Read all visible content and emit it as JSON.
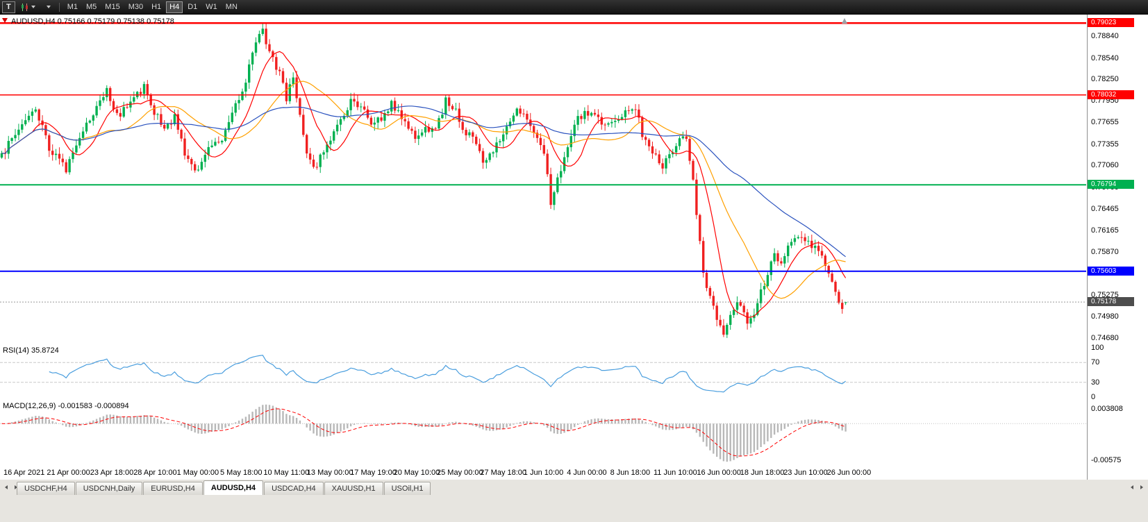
{
  "toolbar": {
    "t_label": "T",
    "timeframes": [
      "M1",
      "M5",
      "M15",
      "M30",
      "H1",
      "H4",
      "D1",
      "W1",
      "MN"
    ],
    "active_timeframe": "H4"
  },
  "chart": {
    "title": "AUDUSD,H4 0.75166 0.75179 0.75138 0.75178",
    "symbol": "AUDUSD",
    "timeframe": "H4",
    "open": "0.75166",
    "high": "0.75179",
    "low": "0.75138",
    "close": "0.75178",
    "y_axis_labels": [
      "0.78840",
      "0.78540",
      "0.78250",
      "0.77950",
      "0.77655",
      "0.77355",
      "0.77060",
      "0.76760",
      "0.76465",
      "0.76165",
      "0.75870",
      "0.75570",
      "0.75275",
      "0.74980",
      "0.74680"
    ],
    "hlines": [
      {
        "label": "0.79023",
        "value": 0.79023,
        "color": "#ff0000",
        "width": 2.5
      },
      {
        "label": "0.78032",
        "value": 0.78032,
        "color": "#ff0000",
        "width": 1.5
      },
      {
        "label": "0.76794",
        "value": 0.76794,
        "color": "#00b050",
        "width": 2
      },
      {
        "label": "0.75603",
        "value": 0.75603,
        "color": "#0000ff",
        "width": 2
      }
    ],
    "current_price": {
      "label": "0.75178",
      "value": 0.75178
    },
    "colors": {
      "up_candle": "#00b050",
      "down_candle": "#f02020",
      "rsi_line": "#4a9ede",
      "macd_histogram": "#b8b8b8",
      "macd_signal": "#ff0000",
      "current_badge": "#4d4d4d",
      "current_price_line": "#999999"
    }
  },
  "rsi": {
    "label": "RSI(14) 35.8724",
    "period": 14,
    "value": "35.8724",
    "levels": [
      "100",
      "70",
      "30",
      "0"
    ]
  },
  "macd": {
    "label": "MACD(12,26,9) -0.001583 -0.000894",
    "value": "-0.001583",
    "signal": "-0.000894",
    "axis_top": "0.003808",
    "axis_bottom": "-0.00575"
  },
  "time_axis": {
    "labels": [
      "16 Apr 2021",
      "21 Apr 00:00",
      "23 Apr 18:00",
      "28 Apr 10:00",
      "1 May 00:00",
      "5 May 18:00",
      "10 May 11:00",
      "13 May 00:00",
      "17 May 19:00",
      "20 May 10:00",
      "25 May 00:00",
      "27 May 18:00",
      "1 Jun 10:00",
      "4 Jun 00:00",
      "8 Jun 18:00",
      "11 Jun 10:00",
      "16 Jun 00:00",
      "18 Jun 18:00",
      "23 Jun 10:00",
      "26 Jun 00:00"
    ]
  },
  "tabs": {
    "items": [
      "USDCHF,H4",
      "USDCNH,Daily",
      "EURUSD,H4",
      "AUDUSD,H4",
      "USDCAD,H4",
      "XAUUSD,H1",
      "USOil,H1"
    ],
    "active": "AUDUSD,H4"
  },
  "chart_data": {
    "type": "candlestick",
    "symbol": "AUDUSD",
    "timeframe": "H4",
    "title": "AUDUSD,H4",
    "last_ohlc": {
      "open": 0.75166,
      "high": 0.75179,
      "low": 0.75138,
      "close": 0.75178
    },
    "y_range": [
      0.74595,
      0.7915
    ],
    "price_scale_top": 0.7915,
    "price_scale_bottom": 0.74595,
    "x_labels": [
      "16 Apr 2021",
      "21 Apr 00:00",
      "23 Apr 18:00",
      "28 Apr 10:00",
      "1 May 00:00",
      "5 May 18:00",
      "10 May 11:00",
      "13 May 00:00",
      "17 May 19:00",
      "20 May 10:00",
      "25 May 00:00",
      "27 May 18:00",
      "1 Jun 10:00",
      "4 Jun 00:00",
      "8 Jun 18:00",
      "11 Jun 10:00",
      "16 Jun 00:00",
      "18 Jun 18:00",
      "23 Jun 10:00",
      "26 Jun 00:00"
    ],
    "candle_count": 250,
    "noise_seed": 97531,
    "noise_amp": 0.0011,
    "wick_amp": 0.0008,
    "price_path": [
      [
        0,
        0.772
      ],
      [
        6,
        0.7765
      ],
      [
        10,
        0.7785
      ],
      [
        14,
        0.773
      ],
      [
        19,
        0.77
      ],
      [
        23,
        0.7745
      ],
      [
        31,
        0.7808
      ],
      [
        34,
        0.7775
      ],
      [
        38,
        0.779
      ],
      [
        42,
        0.7815
      ],
      [
        45,
        0.778
      ],
      [
        48,
        0.7755
      ],
      [
        51,
        0.7775
      ],
      [
        54,
        0.772
      ],
      [
        58,
        0.7695
      ],
      [
        61,
        0.773
      ],
      [
        65,
        0.7745
      ],
      [
        68,
        0.778
      ],
      [
        71,
        0.7805
      ],
      [
        73,
        0.7845
      ],
      [
        76,
        0.7885
      ],
      [
        77,
        0.7892
      ],
      [
        79,
        0.786
      ],
      [
        82,
        0.7835
      ],
      [
        84,
        0.78
      ],
      [
        86,
        0.7825
      ],
      [
        88,
        0.778
      ],
      [
        90,
        0.772
      ],
      [
        92,
        0.77
      ],
      [
        95,
        0.7725
      ],
      [
        98,
        0.775
      ],
      [
        101,
        0.7775
      ],
      [
        103,
        0.7798
      ],
      [
        106,
        0.7788
      ],
      [
        109,
        0.7765
      ],
      [
        112,
        0.7772
      ],
      [
        115,
        0.779
      ],
      [
        117,
        0.7778
      ],
      [
        120,
        0.7758
      ],
      [
        122,
        0.7742
      ],
      [
        125,
        0.776
      ],
      [
        128,
        0.7752
      ],
      [
        131,
        0.7795
      ],
      [
        134,
        0.778
      ],
      [
        136,
        0.7758
      ],
      [
        139,
        0.7742
      ],
      [
        142,
        0.771
      ],
      [
        145,
        0.7725
      ],
      [
        149,
        0.7762
      ],
      [
        152,
        0.778
      ],
      [
        155,
        0.7772
      ],
      [
        157,
        0.7752
      ],
      [
        160,
        0.7725
      ],
      [
        162,
        0.7655
      ],
      [
        164,
        0.769
      ],
      [
        166,
        0.7715
      ],
      [
        169,
        0.7765
      ],
      [
        172,
        0.7778
      ],
      [
        175,
        0.7772
      ],
      [
        178,
        0.776
      ],
      [
        181,
        0.777
      ],
      [
        184,
        0.778
      ],
      [
        187,
        0.7788
      ],
      [
        189,
        0.7745
      ],
      [
        192,
        0.7728
      ],
      [
        195,
        0.7705
      ],
      [
        197,
        0.772
      ],
      [
        200,
        0.7738
      ],
      [
        202,
        0.7745
      ],
      [
        204,
        0.769
      ],
      [
        205,
        0.764
      ],
      [
        207,
        0.756
      ],
      [
        209,
        0.7525
      ],
      [
        211,
        0.7495
      ],
      [
        213,
        0.7478
      ],
      [
        215,
        0.7502
      ],
      [
        217,
        0.7522
      ],
      [
        219,
        0.7508
      ],
      [
        220,
        0.7488
      ],
      [
        222,
        0.7502
      ],
      [
        224,
        0.7532
      ],
      [
        226,
        0.7556
      ],
      [
        228,
        0.7582
      ],
      [
        230,
        0.7572
      ],
      [
        232,
        0.7592
      ],
      [
        234,
        0.7602
      ],
      [
        236,
        0.7612
      ],
      [
        238,
        0.76
      ],
      [
        240,
        0.759
      ],
      [
        242,
        0.7578
      ],
      [
        244,
        0.756
      ],
      [
        246,
        0.7528
      ],
      [
        248,
        0.7512
      ],
      [
        249,
        0.75178
      ]
    ],
    "moving_averages": [
      {
        "name": "fast",
        "period": 10,
        "color": "#ff0000"
      },
      {
        "name": "mid",
        "period": 24,
        "color": "#ffa000"
      },
      {
        "name": "slow",
        "period": 55,
        "color": "#2a52be"
      }
    ],
    "indicators": [
      {
        "name": "RSI",
        "params": [
          14
        ],
        "last_value": 35.8724,
        "levels": [
          100,
          70,
          30,
          0
        ]
      },
      {
        "name": "MACD",
        "params": [
          12,
          26,
          9
        ],
        "last_value": -0.001583,
        "last_signal": -0.000894,
        "axis_max": 0.003808,
        "axis_min": -0.00575
      }
    ],
    "horizontal_levels": [
      {
        "price": 0.79023,
        "color": "red",
        "type": "resistance"
      },
      {
        "price": 0.78032,
        "color": "red",
        "type": "resistance"
      },
      {
        "price": 0.76794,
        "color": "green",
        "type": "support"
      },
      {
        "price": 0.75603,
        "color": "blue",
        "type": "support"
      }
    ]
  }
}
